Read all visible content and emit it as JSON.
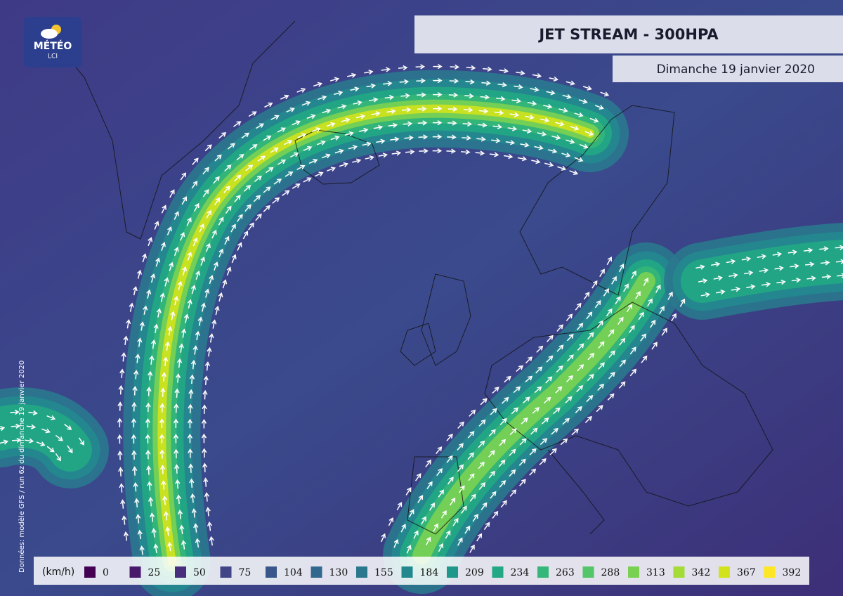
{
  "logo": {
    "name": "MÉTÉO",
    "sub": "LCI"
  },
  "header": {
    "title": "JET STREAM - 300HPA",
    "date": "Dimanche 19 janvier 2020"
  },
  "source": "Données: modèle GFS / run 6z du dimanche 19 janvier 2020",
  "legend": {
    "unit": "(km/h)",
    "items": [
      {
        "label": 0,
        "color": "#440154"
      },
      {
        "label": 25,
        "color": "#481a6c"
      },
      {
        "label": 50,
        "color": "#472f7d"
      },
      {
        "label": 75,
        "color": "#414487"
      },
      {
        "label": 104,
        "color": "#39568c"
      },
      {
        "label": 130,
        "color": "#31688e"
      },
      {
        "label": 155,
        "color": "#2a788e"
      },
      {
        "label": 184,
        "color": "#23888e"
      },
      {
        "label": 209,
        "color": "#1f988b"
      },
      {
        "label": 234,
        "color": "#22a884"
      },
      {
        "label": 263,
        "color": "#35b779"
      },
      {
        "label": 288,
        "color": "#54c568"
      },
      {
        "label": 313,
        "color": "#7ad151"
      },
      {
        "label": 342,
        "color": "#a5db36"
      },
      {
        "label": 367,
        "color": "#d2e21b"
      },
      {
        "label": 392,
        "color": "#fde725"
      }
    ]
  }
}
